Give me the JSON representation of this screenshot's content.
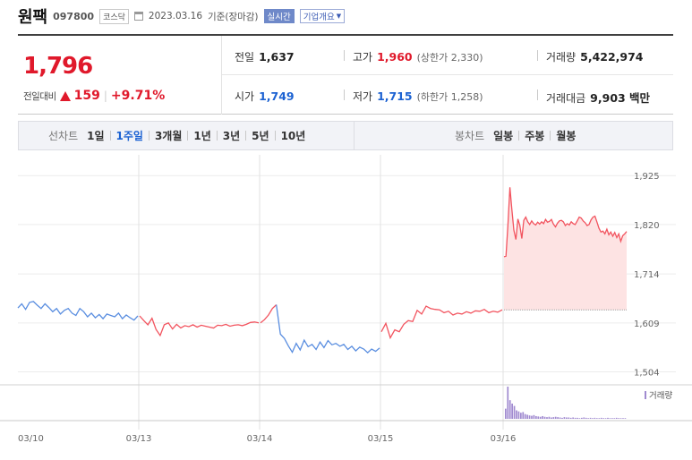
{
  "header": {
    "name": "원팩",
    "code": "097800",
    "market": "코스닥",
    "date": "2023.03.16",
    "basis": "기준(장마감)",
    "realtime_label": "실시간",
    "company_label": "기업개요"
  },
  "quote": {
    "price": "1,796",
    "prev_compare_label": "전일대비",
    "change": "159",
    "change_rate": "+9.71%",
    "prev_close_label": "전일",
    "prev_close": "1,637",
    "high_label": "고가",
    "high": "1,960",
    "upper_limit": "(상한가 2,330)",
    "volume_label": "거래량",
    "volume": "5,422,974",
    "open_label": "시가",
    "open": "1,749",
    "low_label": "저가",
    "low": "1,715",
    "lower_limit": "(하한가 1,258)",
    "amount_label": "거래대금",
    "amount": "9,903 백만"
  },
  "tabs": {
    "line_title": "선차트",
    "line_items": [
      "1일",
      "1주일",
      "3개월",
      "1년",
      "3년",
      "5년",
      "10년"
    ],
    "line_active": 1,
    "candle_title": "봉차트",
    "candle_items": [
      "일봉",
      "주봉",
      "월봉"
    ]
  },
  "colors": {
    "up": "#e0192b",
    "down": "#1c62d2",
    "line_up": "#f2545f",
    "line_down": "#5a8ee0",
    "fill_up": "#fde3e3",
    "volume_bar": "#a08ad0"
  },
  "chart_data": {
    "type": "line",
    "ylim": [
      1480,
      1960
    ],
    "yticks": [
      "1,504",
      "1,609",
      "1,714",
      "1,820",
      "1,925"
    ],
    "ytick_values": [
      1504,
      1609,
      1714,
      1820,
      1925
    ],
    "xticks": [
      "03/10",
      "03/13",
      "03/14",
      "03/15",
      "03/16"
    ],
    "baseline": 1637,
    "legend": "거래량",
    "segments": [
      {
        "day": "03/10",
        "direction": "down",
        "values": [
          1641,
          1650,
          1638,
          1653,
          1655,
          1647,
          1640,
          1650,
          1642,
          1633,
          1640,
          1628,
          1636,
          1640,
          1630,
          1625,
          1640,
          1633,
          1622,
          1630,
          1620,
          1627,
          1618,
          1628,
          1625,
          1622,
          1630,
          1618,
          1626,
          1620,
          1615,
          1624
        ]
      },
      {
        "day": "03/13",
        "direction": "up",
        "values": [
          1624,
          1614,
          1605,
          1619,
          1595,
          1582,
          1605,
          1609,
          1596,
          1606,
          1598,
          1603,
          1601,
          1605,
          1600,
          1604,
          1602,
          1600,
          1598,
          1604,
          1603,
          1606,
          1602,
          1604,
          1605,
          1603,
          1606,
          1610,
          1611,
          1609
        ]
      },
      {
        "day": "03/14",
        "direction": "up_then_down",
        "values": [
          1609,
          1616,
          1626,
          1640,
          1648,
          1585,
          1576,
          1560,
          1546,
          1565,
          1551,
          1572,
          1558,
          1563,
          1552,
          1568,
          1556,
          1571,
          1562,
          1565,
          1559,
          1563,
          1552,
          1559,
          1549,
          1557,
          1553,
          1545,
          1553,
          1548,
          1555
        ]
      },
      {
        "day": "03/15",
        "direction": "up",
        "values": [
          1590,
          1608,
          1577,
          1594,
          1590,
          1606,
          1614,
          1612,
          1636,
          1628,
          1645,
          1640,
          1638,
          1637,
          1631,
          1634,
          1626,
          1630,
          1628,
          1633,
          1630,
          1635,
          1634,
          1638,
          1631,
          1634,
          1632,
          1637
        ]
      },
      {
        "day": "03/16",
        "direction": "up",
        "values": [
          1751,
          1752,
          1820,
          1900,
          1852,
          1808,
          1788,
          1832,
          1818,
          1790,
          1829,
          1836,
          1826,
          1820,
          1828,
          1822,
          1819,
          1825,
          1821,
          1826,
          1822,
          1831,
          1825,
          1827,
          1831,
          1821,
          1815,
          1823,
          1828,
          1829,
          1826,
          1818,
          1822,
          1819,
          1826,
          1822,
          1820,
          1828,
          1836,
          1834,
          1828,
          1824,
          1818,
          1820,
          1830,
          1836,
          1838,
          1825,
          1812,
          1804,
          1806,
          1800,
          1810,
          1798,
          1804,
          1795,
          1803,
          1792,
          1800,
          1784,
          1796,
          1800,
          1805
        ]
      }
    ],
    "volume": {
      "day": "03/16",
      "values": [
        30,
        95,
        55,
        45,
        38,
        25,
        22,
        18,
        20,
        14,
        12,
        10,
        9,
        11,
        8,
        7,
        6,
        8,
        6,
        5,
        6,
        4,
        5,
        6,
        5,
        4,
        3,
        5,
        4,
        4,
        3,
        4,
        3,
        3,
        2,
        3,
        4,
        3,
        2,
        3,
        2,
        3,
        2,
        2,
        3,
        2,
        2,
        3,
        2,
        2,
        2,
        3,
        2,
        2,
        2,
        2
      ]
    }
  }
}
